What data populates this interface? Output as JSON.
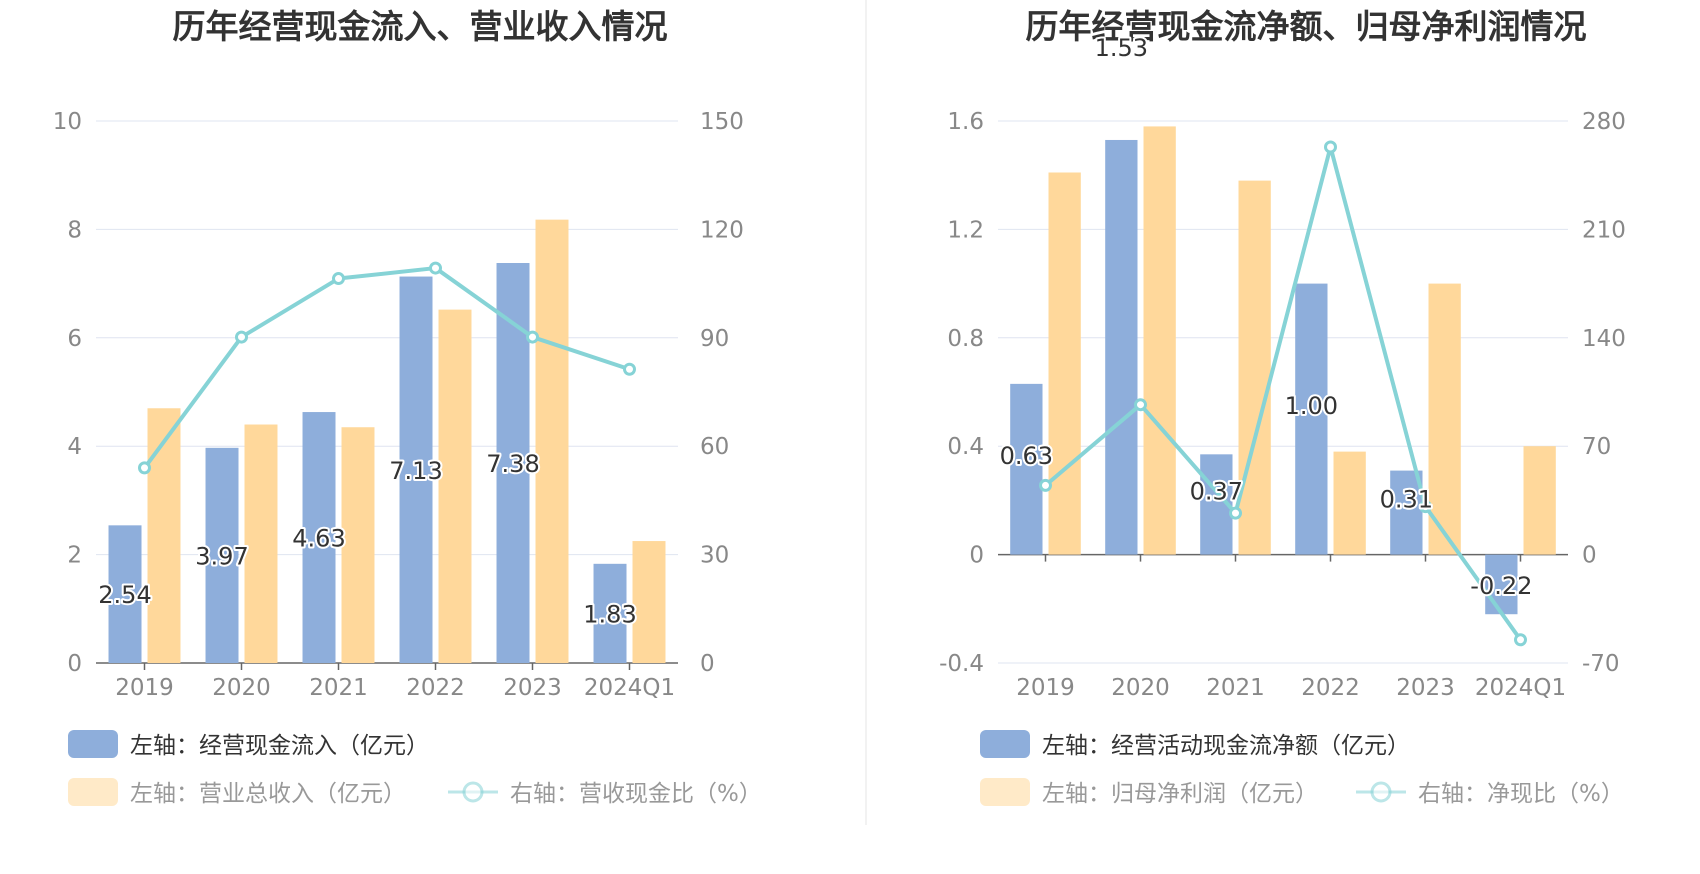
{
  "colors": {
    "bar_primary": "#8eaedb",
    "bar_secondary": "#ffd89b",
    "line": "#86d3d6",
    "grid": "#dfe4f0",
    "axis_text": "#888888",
    "title": "#333333",
    "label": "#333333",
    "legend_text": "#666666"
  },
  "chart_data": [
    {
      "type": "bar",
      "title": "历年经营现金流入、营业收入情况",
      "categories": [
        "2019",
        "2020",
        "2021",
        "2022",
        "2023",
        "2024Q1"
      ],
      "left_axis": {
        "ylim": [
          0,
          10
        ],
        "ticks": [
          "0",
          "2",
          "4",
          "6",
          "8",
          "10"
        ]
      },
      "right_axis": {
        "ylim": [
          0,
          150
        ],
        "ticks": [
          "0",
          "30",
          "60",
          "90",
          "120",
          "150"
        ]
      },
      "series": [
        {
          "name": "左轴：经营现金流入（亿元）",
          "kind": "bar",
          "axis": "left",
          "color": "#8eaedb",
          "values": [
            2.54,
            3.97,
            4.63,
            7.13,
            7.38,
            1.83
          ],
          "labels": [
            "2.54",
            "3.97",
            "4.63",
            "7.13",
            "7.38",
            "1.83"
          ]
        },
        {
          "name": "左轴：营业总收入（亿元）",
          "kind": "bar",
          "axis": "left",
          "color": "#ffd89b",
          "values": [
            4.7,
            4.4,
            4.35,
            6.52,
            8.18,
            2.25
          ]
        },
        {
          "name": "右轴：营收现金比（%）",
          "kind": "line",
          "axis": "right",
          "color": "#86d3d6",
          "values": [
            54.0,
            90.2,
            106.4,
            109.3,
            90.2,
            81.3
          ]
        }
      ]
    },
    {
      "type": "bar",
      "title": "历年经营现金流净额、归母净利润情况",
      "categories": [
        "2019",
        "2020",
        "2021",
        "2022",
        "2023",
        "2024Q1"
      ],
      "left_axis": {
        "ylim": [
          -0.4,
          1.6
        ],
        "ticks": [
          "-0.4",
          "0",
          "0.4",
          "0.8",
          "1.2",
          "1.6"
        ]
      },
      "right_axis": {
        "ylim": [
          -70,
          280
        ],
        "ticks": [
          "-70",
          "0",
          "70",
          "140",
          "210",
          "280"
        ]
      },
      "series": [
        {
          "name": "左轴：经营活动现金流净额（亿元）",
          "kind": "bar",
          "axis": "left",
          "color": "#8eaedb",
          "values": [
            0.63,
            1.53,
            0.37,
            1.0,
            0.31,
            -0.22
          ],
          "labels": [
            "0.63",
            "1.53",
            "0.37",
            "1.00",
            "0.31",
            "-0.22"
          ]
        },
        {
          "name": "左轴：归母净利润（亿元）",
          "kind": "bar",
          "axis": "left",
          "color": "#ffd89b",
          "values": [
            1.41,
            1.58,
            1.38,
            0.38,
            1.0,
            0.4
          ]
        },
        {
          "name": "右轴：净现比（%）",
          "kind": "line",
          "axis": "right",
          "color": "#86d3d6",
          "values": [
            44.7,
            96.8,
            26.8,
            263.2,
            31.0,
            -55.0
          ]
        }
      ]
    }
  ]
}
